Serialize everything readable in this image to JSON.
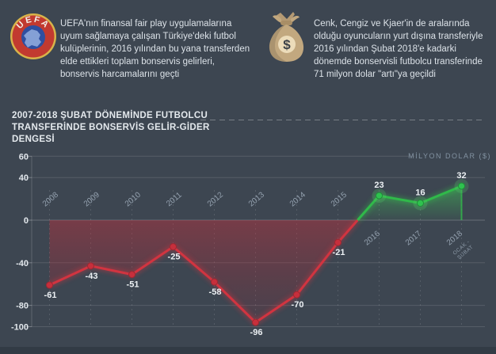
{
  "theme": {
    "background": "#3d4651",
    "bottom_strip": "#323b45",
    "negative_color": "#d13440",
    "positive_color": "#30b94a",
    "text_color": "#dce2e8",
    "muted_color": "#8292a1"
  },
  "header": {
    "uefa": {
      "logo_label": "UEFA",
      "text": "UEFA'nın finansal fair play uygulamalarına uyum sağlamaya çalışan Türkiye'deki futbol kulüplerinin, 2016 yılından bu yana transferden elde ettikleri toplam bonservis gelirleri, bonservis harcamalarını geçti"
    },
    "moneybag": {
      "dollar_sign": "$",
      "text": "Cenk, Cengiz ve Kjaer'in de aralarında olduğu oyuncuların yurt dışına transferiyle 2016 yılından Şubat 2018'e kadarki dönemde bonservisli futbolcu transferinde 71 milyon dolar \"artı\"ya geçildi"
    }
  },
  "chart_title": {
    "line1": "2007-2018 ŞUBAT DÖNEMİNDE FUTBOLCU",
    "line2": "TRANSFERİNDE BONSERVİS GELİR-GİDER DENGESİ"
  },
  "chart_data": {
    "type": "line",
    "title": "2007-2018 ŞUBAT DÖNEMİNDE FUTBOLCU TRANSFERİNDE BONSERVİS GELİR-GİDER DENGESİ",
    "unit_label": "MİLYON DOLAR ($)",
    "categories": [
      "2008",
      "2009",
      "2010",
      "2011",
      "2012",
      "2013",
      "2014",
      "2015",
      "2016",
      "2017",
      "2018"
    ],
    "values": [
      -61,
      -43,
      -51,
      -25,
      -58,
      -96,
      -70,
      -21,
      23,
      16,
      32
    ],
    "last_category_note_lines": [
      "OCAK -",
      "ŞUBAT"
    ],
    "yticks": [
      60,
      40,
      0,
      -40,
      -80,
      -100
    ],
    "ylim": [
      -100,
      60
    ],
    "grid": "labeled horizontal lines + dashed vertical year lines",
    "legend_position": "none",
    "colors": {
      "negative": "#d13440",
      "positive": "#30b94a"
    }
  }
}
